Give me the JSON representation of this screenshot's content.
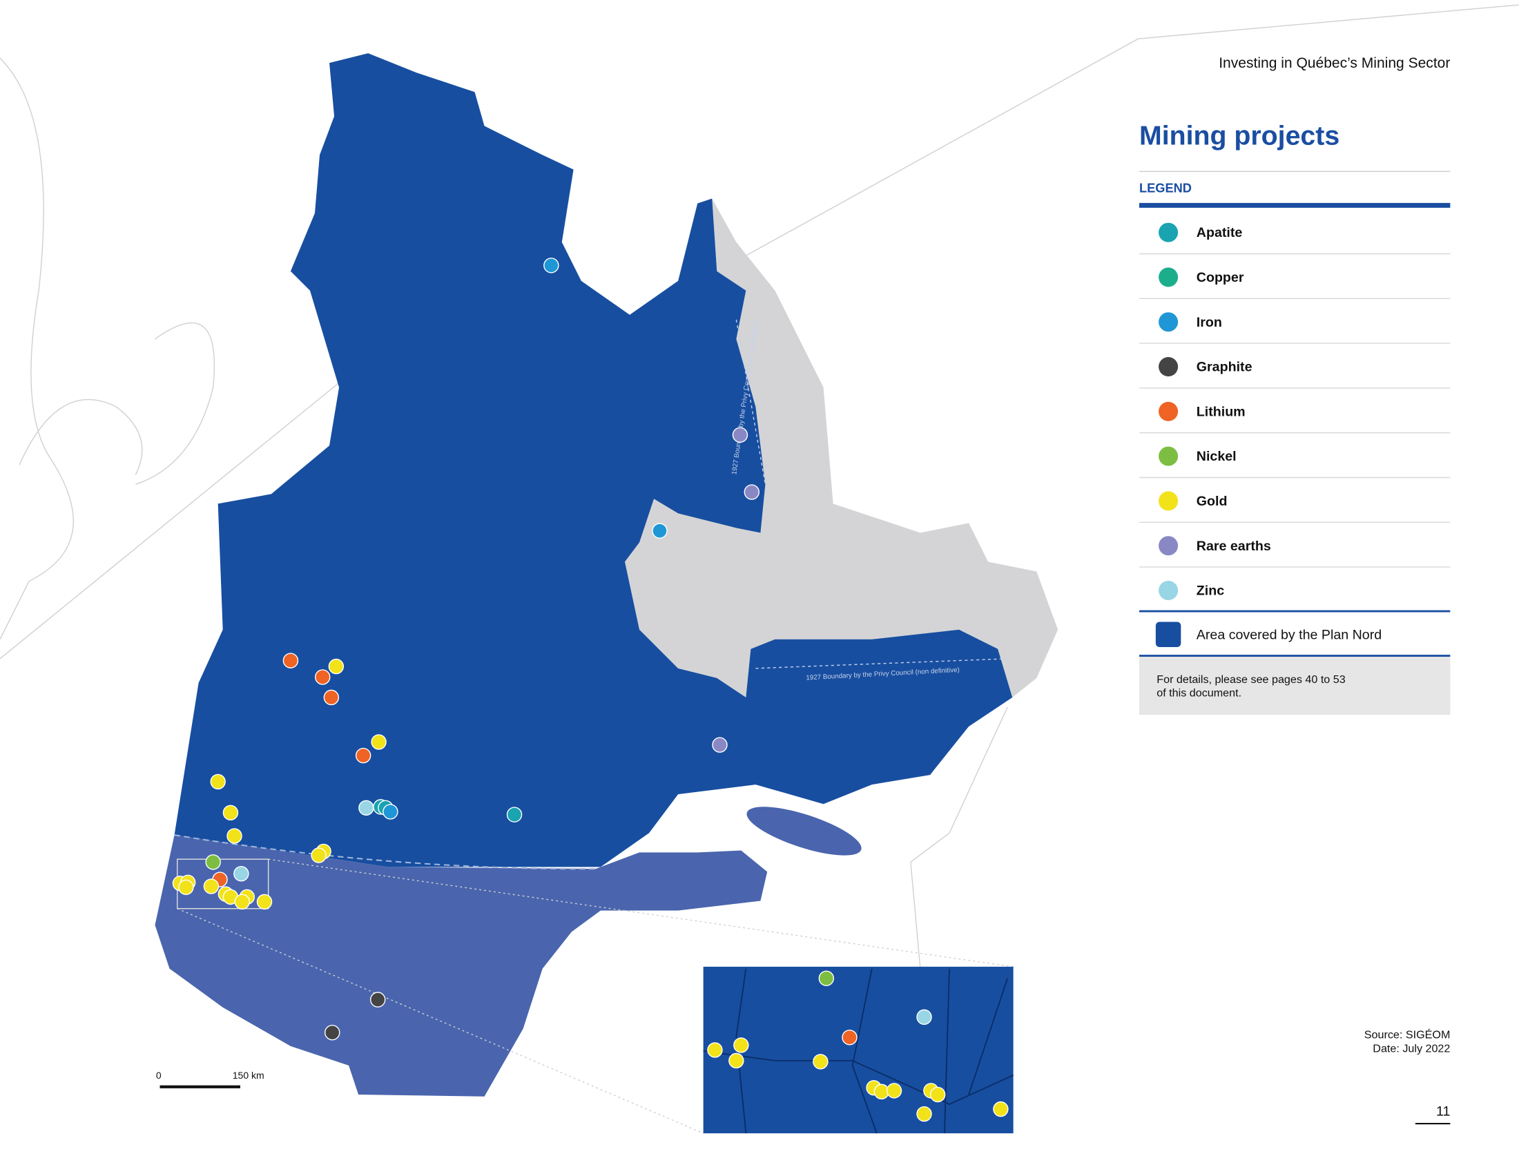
{
  "header": {
    "title": "Investing in Québec’s Mining Sector"
  },
  "panel": {
    "title": "Mining projects",
    "legend_heading": "LEGEND",
    "items": [
      {
        "label": "Apatite",
        "color": "#1aa3b0"
      },
      {
        "label": "Copper",
        "color": "#1cae8c"
      },
      {
        "label": "Iron",
        "color": "#1f96d6"
      },
      {
        "label": "Graphite",
        "color": "#444444"
      },
      {
        "label": "Lithium",
        "color": "#ef6325"
      },
      {
        "label": "Nickel",
        "color": "#7dbe42"
      },
      {
        "label": "Gold",
        "color": "#f2e21a"
      },
      {
        "label": "Rare earths",
        "color": "#8a88c4"
      },
      {
        "label": "Zinc",
        "color": "#98d5e5"
      }
    ],
    "area": {
      "label": "Area covered by the Plan Nord",
      "color": "#174ea0"
    },
    "note": [
      "For details, please see pages 40 to 53",
      "of this document."
    ]
  },
  "map": {
    "boundary_labels": [
      "1927 Boundary by the Privy Council (non definitive)",
      "1927 Boundary by the Privy Council (non definitive)"
    ],
    "scale": {
      "start": "0",
      "end": "150 km"
    }
  },
  "footer": {
    "source": "Source: SIGÉOM",
    "date": "Date: July 2022",
    "page": "11"
  }
}
